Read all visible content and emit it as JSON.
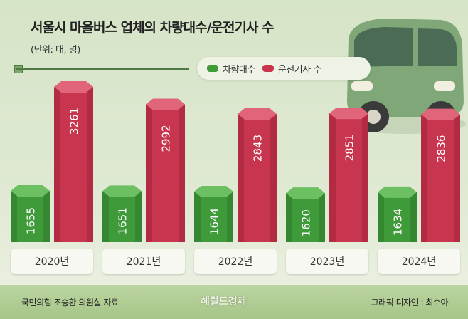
{
  "header": {
    "title": "서울시 마을버스 업체의 차량대수/운전기사 수",
    "unit": "(단위: 대, 명)"
  },
  "colors": {
    "vehicles": "#3f9a3a",
    "drivers": "#c8354e"
  },
  "chart_data": {
    "type": "bar",
    "title": "서울시 마을버스 업체의 차량대수/운전기사 수",
    "categories": [
      "2020년",
      "2021년",
      "2022년",
      "2023년",
      "2024년"
    ],
    "series": [
      {
        "name": "차량대수",
        "values": [
          1655,
          1651,
          1644,
          1620,
          1634
        ]
      },
      {
        "name": "운전기사 수",
        "values": [
          3261,
          2992,
          2843,
          2851,
          2836
        ]
      }
    ],
    "legend": "top-right",
    "grid": false
  },
  "footer": {
    "source": "국민의힘 조승환 의원실 자료",
    "brand": "헤럴드경제",
    "credit": "그래픽 디자인 : 최수아"
  }
}
